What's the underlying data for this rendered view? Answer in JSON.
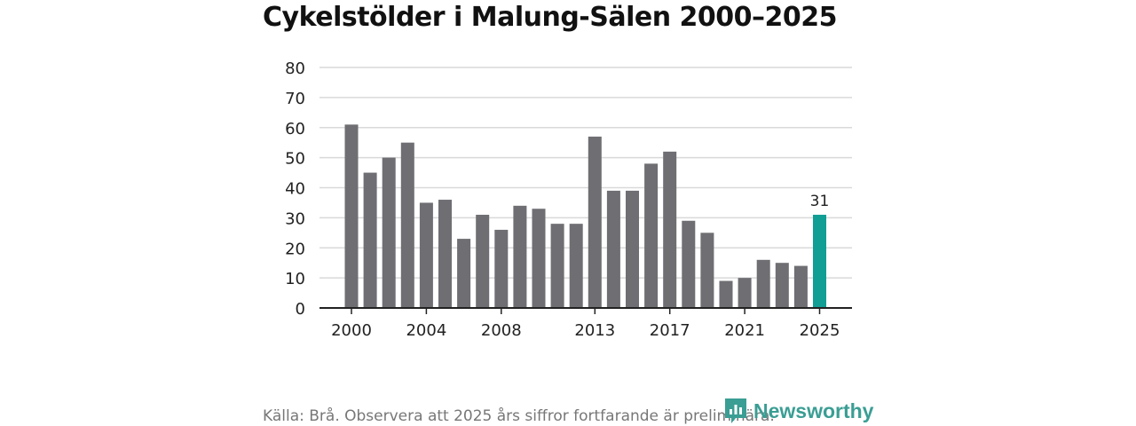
{
  "title": "Cykelstölder i Malung-Sälen 2000–2025",
  "source": "Källa: Brå. Observera att 2025 års siffror fortfarande är preliminära.",
  "brand": "Newsworthy",
  "colors": {
    "bar": "#6e6e73",
    "highlight": "#119e94",
    "grid": "#d9d9d9",
    "axis": "#222222",
    "brand": "#3a9e94"
  },
  "chart_data": {
    "type": "bar",
    "title": "Cykelstölder i Malung-Sälen 2000–2025",
    "xlabel": "",
    "ylabel": "",
    "categories": [
      2000,
      2001,
      2002,
      2003,
      2004,
      2005,
      2006,
      2007,
      2008,
      2009,
      2010,
      2011,
      2012,
      2013,
      2014,
      2015,
      2016,
      2017,
      2018,
      2019,
      2020,
      2021,
      2022,
      2023,
      2024,
      2025
    ],
    "values": [
      61,
      45,
      50,
      55,
      35,
      36,
      23,
      31,
      26,
      34,
      33,
      28,
      28,
      57,
      39,
      39,
      48,
      52,
      29,
      25,
      9,
      10,
      16,
      15,
      14,
      31
    ],
    "highlight_index": 25,
    "highlight_label": "31",
    "x_tick_labels": [
      "2000",
      "2004",
      "2008",
      "2013",
      "2017",
      "2021",
      "2025"
    ],
    "y_ticks": [
      0,
      10,
      20,
      30,
      40,
      50,
      60,
      70,
      80
    ],
    "ylim": [
      0,
      80
    ],
    "grid": true
  }
}
